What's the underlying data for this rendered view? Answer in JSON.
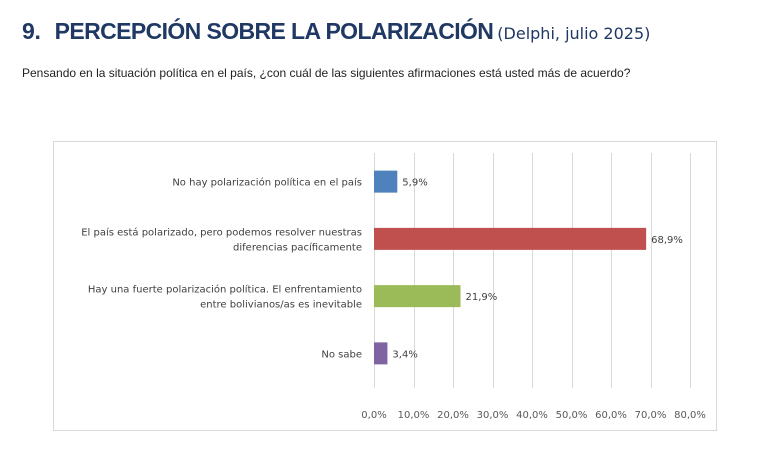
{
  "header": {
    "number": "9.",
    "title": "PERCEPCIÓN SOBRE LA POLARIZACIÓN",
    "source": "(Delphi, julio 2025)",
    "question": "Pensando en la situación política en el país, ¿con cuál de las siguientes afirmaciones está usted más de acuerdo?"
  },
  "chart_data": {
    "type": "bar",
    "orientation": "horizontal",
    "title": "",
    "xlabel": "",
    "ylabel": "",
    "categories": [
      [
        "No hay polarización política en el país"
      ],
      [
        "El país está polarizado, pero podemos resolver nuestras",
        "diferencias pacíficamente"
      ],
      [
        "Hay una fuerte polarización política. El enfrentamiento",
        "entre bolivianos/as es inevitable"
      ],
      [
        "No sabe"
      ]
    ],
    "values": [
      5.9,
      68.9,
      21.9,
      3.4
    ],
    "value_labels": [
      "5,9%",
      "68,9%",
      "21,9%",
      "3,4%"
    ],
    "colors": [
      "#4f81bd",
      "#c0504d",
      "#9bbb59",
      "#8064a2"
    ],
    "xlim": [
      0,
      80
    ],
    "ticks": [
      0,
      10,
      20,
      30,
      40,
      50,
      60,
      70,
      80
    ],
    "tick_labels": [
      "0,0%",
      "10,0%",
      "20,0%",
      "30,0%",
      "40,0%",
      "50,0%",
      "60,0%",
      "70,0%",
      "80,0%"
    ],
    "grid": true,
    "legend": "none"
  }
}
